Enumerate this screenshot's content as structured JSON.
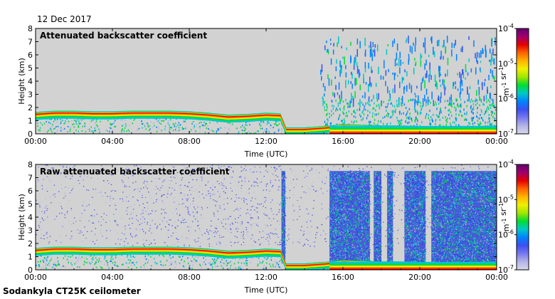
{
  "header": {
    "date": "12 Dec 2017"
  },
  "footer": {
    "instrument": "Sodankyla CT25K ceilometer"
  },
  "colors": {
    "background": "#d2d2d2",
    "colormap": [
      "#d8d8ec",
      "#b4b4e8",
      "#7878f0",
      "#3c50f0",
      "#0082ff",
      "#00c8c8",
      "#00dc32",
      "#a0e600",
      "#f0f000",
      "#ffb400",
      "#ff6400",
      "#e60000",
      "#a0006e",
      "#64006e"
    ]
  },
  "chart_data": [
    {
      "type": "heatmap",
      "title": "Attenuated backscatter coefficient",
      "xlabel": "Time (UTC)",
      "ylabel": "Height (km)",
      "x_ticks": [
        "00:00",
        "04:00",
        "08:00",
        "12:00",
        "16:00",
        "20:00",
        "00:00"
      ],
      "y_ticks": [
        "0",
        "1",
        "2",
        "3",
        "4",
        "5",
        "6",
        "7",
        "8"
      ],
      "xlim_hours": [
        0,
        24
      ],
      "ylim_km": [
        0,
        8
      ],
      "colorbar": {
        "scale": "log",
        "ticks": [
          "10-7",
          "10-6",
          "10-5",
          "10-4"
        ],
        "unit": "m-1 sr-1"
      },
      "cloud_layer": {
        "hours": [
          0,
          1,
          2,
          3,
          4,
          5,
          6,
          7,
          8,
          9,
          10,
          11,
          12,
          12.8,
          13,
          14,
          15,
          16,
          17,
          18,
          19,
          20,
          21,
          22,
          23,
          24
        ],
        "top_km": [
          1.5,
          1.6,
          1.6,
          1.55,
          1.55,
          1.6,
          1.6,
          1.6,
          1.55,
          1.45,
          1.3,
          1.35,
          1.45,
          1.4,
          0.35,
          0.35,
          0.45,
          0.6,
          0.55,
          0.5,
          0.5,
          0.45,
          0.45,
          0.4,
          0.45,
          0.5
        ]
      },
      "precipitation": {
        "start_hour": 15.2,
        "end_hour": 24,
        "max_height_km": 7.5
      }
    },
    {
      "type": "heatmap",
      "title": "Raw attenuated backscatter coefficient",
      "xlabel": "Time (UTC)",
      "ylabel": "Height (km)",
      "x_ticks": [
        "00:00",
        "04:00",
        "08:00",
        "12:00",
        "16:00",
        "20:00",
        "00:00"
      ],
      "y_ticks": [
        "0",
        "1",
        "2",
        "3",
        "4",
        "5",
        "6",
        "7",
        "8"
      ],
      "xlim_hours": [
        0,
        24
      ],
      "ylim_km": [
        0,
        8
      ],
      "colorbar": {
        "scale": "log",
        "ticks": [
          "10-7",
          "10-6",
          "10-5",
          "10-4"
        ],
        "unit": "m-1 sr-1"
      },
      "cloud_layer": {
        "hours": [
          0,
          1,
          2,
          3,
          4,
          5,
          6,
          7,
          8,
          9,
          10,
          11,
          12,
          12.8,
          13,
          14,
          15,
          16,
          17,
          18,
          19,
          20,
          21,
          22,
          23,
          24
        ],
        "top_km": [
          1.5,
          1.6,
          1.6,
          1.55,
          1.55,
          1.6,
          1.6,
          1.6,
          1.55,
          1.45,
          1.3,
          1.35,
          1.45,
          1.4,
          0.35,
          0.35,
          0.45,
          0.6,
          0.55,
          0.5,
          0.5,
          0.45,
          0.45,
          0.4,
          0.45,
          0.5
        ]
      },
      "noise_blocks_hours": [
        [
          12.8,
          13.0
        ],
        [
          15.3,
          17.4
        ],
        [
          17.6,
          18.0
        ],
        [
          18.3,
          18.6
        ],
        [
          19.2,
          20.3
        ],
        [
          20.6,
          24.0
        ]
      ]
    }
  ]
}
